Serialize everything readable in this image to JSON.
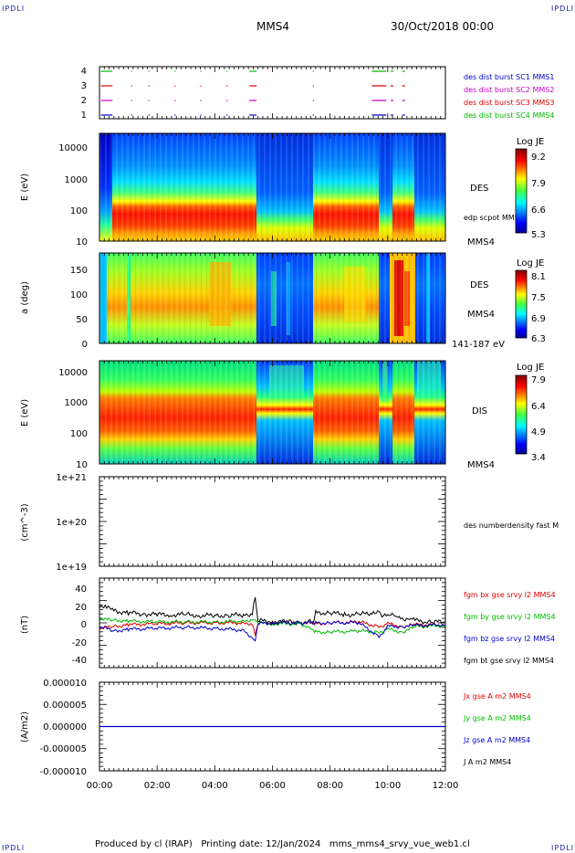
{
  "corner_marks": [
    "IPDLI",
    "IPDLI",
    "IPDLI",
    "IPDLI"
  ],
  "header": {
    "spacecraft": "MMS4",
    "datetime": "30/Oct/2018 00:00"
  },
  "footer": "Produced by cl (IRAP)   Printing date: 12/Jan/2024   mms_mms4_srvy_vue_web1.cl",
  "colors": {
    "blue": "#0000cc",
    "magenta": "#cc00cc",
    "red": "#dd0000",
    "green": "#00bb00",
    "black": "#000000"
  },
  "chart_data": [
    {
      "type": "timeline",
      "id": "burst",
      "yticks": [
        "1",
        "2",
        "3",
        "4"
      ],
      "legend": [
        {
          "name": "des dist burst SC1 MMS1",
          "color": "#0000cc"
        },
        {
          "name": "des dist burst SC2 MMS2",
          "color": "#cc00cc"
        },
        {
          "name": "des dist burst SC3 MMS3",
          "color": "#dd0000"
        },
        {
          "name": "des dist burst SC4 MMS4",
          "color": "#00bb00"
        }
      ],
      "segments_hours": [
        [
          0.05,
          0.45
        ],
        [
          5.2,
          5.45
        ],
        [
          9.45,
          9.95
        ],
        [
          10.1,
          10.2
        ],
        [
          10.5,
          10.6
        ]
      ]
    },
    {
      "type": "heatmap",
      "id": "des-energy",
      "ylabel": "E (eV)",
      "yticks": [
        "10",
        "100",
        "1000",
        "10000"
      ],
      "right_labels": [
        "DES",
        "edp scpot MMS4",
        "MMS4"
      ],
      "colorbar": {
        "title": "Log JE",
        "ticks": [
          "9.2",
          "7.9",
          "6.6",
          "5.3"
        ]
      }
    },
    {
      "type": "heatmap",
      "id": "des-pitch",
      "ylabel": "a (deg)",
      "yticks": [
        "0",
        "50",
        "100",
        "150"
      ],
      "right_labels": [
        "DES",
        "MMS4",
        "141-187 eV"
      ],
      "colorbar": {
        "title": "Log JE",
        "ticks": [
          "8.1",
          "7.5",
          "6.9",
          "6.3"
        ]
      }
    },
    {
      "type": "heatmap",
      "id": "dis-energy",
      "ylabel": "E (eV)",
      "yticks": [
        "10",
        "100",
        "1000",
        "10000"
      ],
      "right_labels": [
        "DIS",
        "MMS4"
      ],
      "colorbar": {
        "title": "Log JE",
        "ticks": [
          "7.9",
          "6.4",
          "4.9",
          "3.4"
        ]
      }
    },
    {
      "type": "line",
      "id": "density",
      "ylabel": "(cm^-3)",
      "yticks": [
        "1e+19",
        "1e+20",
        "1e+21"
      ],
      "legend": [
        {
          "name": "des numberdensity fast M",
          "color": "#000000"
        }
      ],
      "series": []
    },
    {
      "type": "line",
      "id": "fgm",
      "ylabel": "(nT)",
      "yticks": [
        "-40",
        "-20",
        "0",
        "20",
        "40"
      ],
      "ylim": [
        -48,
        50
      ],
      "legend": [
        {
          "name": "fgm bx gse srvy l2 MMS4",
          "color": "#dd0000"
        },
        {
          "name": "fgm by gse srvy l2 MMS4",
          "color": "#00bb00"
        },
        {
          "name": "fgm bz gse srvy l2 MMS4",
          "color": "#0000cc"
        },
        {
          "name": "fgm bt gse srvy l2 MMS4",
          "color": "#000000"
        }
      ],
      "series": [
        {
          "key": "bt",
          "color": "#000000",
          "x": [
            0,
            0.25,
            0.5,
            1,
            1.5,
            2,
            2.5,
            3,
            3.5,
            4,
            4.5,
            5,
            5.3,
            5.4,
            5.5,
            6,
            6.5,
            7,
            7.4,
            7.5,
            8,
            8.5,
            9,
            9.5,
            9.7,
            9.8,
            10,
            10.3,
            10.5,
            10.8,
            11,
            11.5,
            12
          ],
          "y": [
            20,
            18,
            14,
            12,
            11,
            10,
            10,
            10,
            9,
            9,
            9,
            10,
            11,
            30,
            3,
            3,
            2,
            2,
            2,
            12,
            12,
            10,
            10,
            12,
            15,
            8,
            8,
            10,
            6,
            5,
            3,
            2,
            2
          ]
        },
        {
          "key": "bx",
          "color": "#dd0000",
          "x": [
            0,
            0.5,
            1,
            2,
            3,
            4,
            5,
            5.3,
            5.4,
            5.5,
            6,
            7,
            7.5,
            8,
            9,
            9.7,
            10,
            10.5,
            11,
            12
          ],
          "y": [
            -5,
            -3,
            -1,
            0,
            1,
            1,
            1,
            0,
            -12,
            0,
            1,
            1,
            0,
            1,
            2,
            -3,
            0,
            -3,
            -1,
            -1
          ]
        },
        {
          "key": "by",
          "color": "#00bb00",
          "x": [
            0,
            0.5,
            1,
            2,
            3,
            4,
            5,
            5.4,
            5.5,
            6,
            7,
            7.5,
            8,
            9,
            9.7,
            10,
            10.5,
            11,
            12
          ],
          "y": [
            5,
            4,
            3,
            2,
            2,
            2,
            3,
            5,
            1,
            0,
            0,
            -9,
            -9,
            -8,
            -9,
            -6,
            -9,
            -3,
            -2
          ]
        },
        {
          "key": "bz",
          "color": "#0000cc",
          "x": [
            0,
            0.5,
            1,
            2,
            3,
            4,
            5,
            5.4,
            5.5,
            6,
            7,
            7.5,
            8,
            9,
            9.7,
            10,
            10.5,
            11,
            12
          ],
          "y": [
            -3,
            -8,
            -6,
            -5,
            -4,
            -5,
            -7,
            -18,
            0,
            1,
            1,
            1,
            1,
            1,
            -14,
            -3,
            -3,
            -2,
            -1
          ]
        }
      ]
    },
    {
      "type": "line",
      "id": "current",
      "ylabel": "(A/m2)",
      "yticks": [
        "-0.000010",
        "-0.000005",
        "0.000000",
        "0.000005",
        "0.000010"
      ],
      "ylim": [
        -1e-05,
        1e-05
      ],
      "legend": [
        {
          "name": "Jx gse A m2 MMS4",
          "color": "#dd0000"
        },
        {
          "name": "Jy gse A m2 MMS4",
          "color": "#00bb00"
        },
        {
          "name": "Jz gse A m2 MMS4",
          "color": "#0000cc"
        },
        {
          "name": "J A m2 MMS4",
          "color": "#000000"
        }
      ],
      "series": [
        {
          "key": "j",
          "color": "#0000cc",
          "x": [
            0,
            1,
            2,
            3,
            4,
            5,
            5.5,
            6,
            7,
            8,
            9,
            10,
            11,
            12
          ],
          "y": [
            0,
            0,
            0,
            0,
            0,
            0,
            0,
            0,
            0,
            0,
            0,
            0,
            0,
            0
          ]
        }
      ]
    }
  ],
  "xaxis": {
    "ticks": [
      "00:00",
      "02:00",
      "04:00",
      "06:00",
      "08:00",
      "10:00",
      "12:00"
    ],
    "range_hours": [
      0,
      12
    ]
  }
}
